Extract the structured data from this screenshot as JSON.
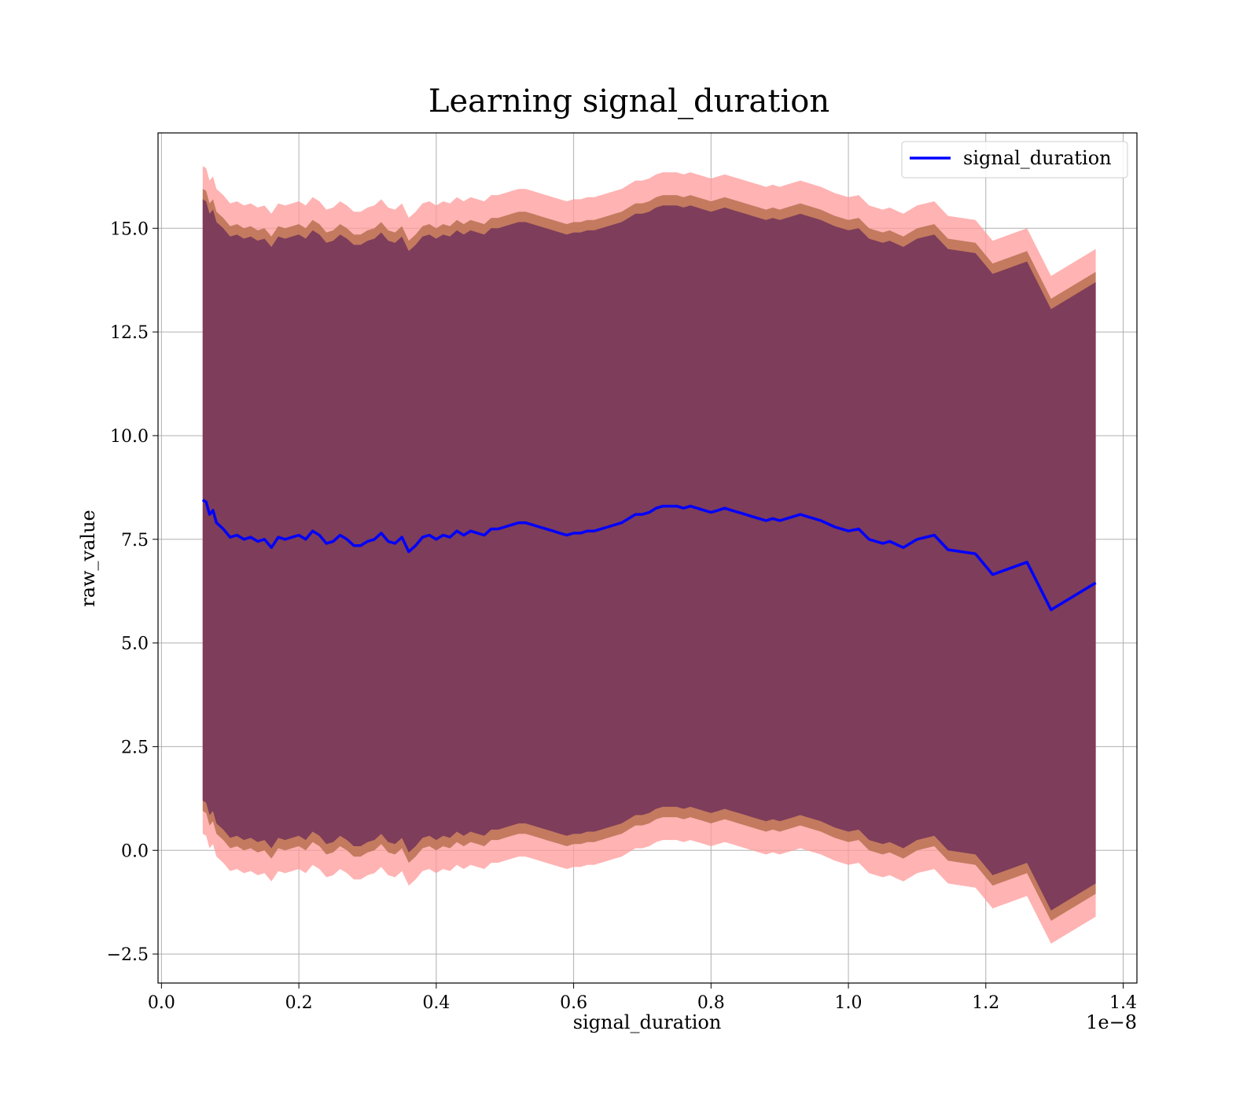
{
  "chart_data": {
    "type": "line",
    "title": "Learning signal_duration",
    "xlabel": "signal_duration",
    "ylabel": "raw_value",
    "x_offset_label": "1e−8",
    "xlim": [
      -0.005,
      1.42
    ],
    "ylim": [
      -3.2,
      17.3
    ],
    "x_ticks": [
      0.0,
      0.2,
      0.4,
      0.6,
      0.8,
      1.0,
      1.2,
      1.4
    ],
    "x_tick_labels": [
      "0.0",
      "0.2",
      "0.4",
      "0.6",
      "0.8",
      "1.0",
      "1.2",
      "1.4"
    ],
    "y_ticks": [
      -2.5,
      0.0,
      2.5,
      5.0,
      7.5,
      10.0,
      12.5,
      15.0
    ],
    "y_tick_labels": [
      "−2.5",
      "0.0",
      "2.5",
      "5.0",
      "7.5",
      "10.0",
      "12.5",
      "15.0"
    ],
    "grid": true,
    "legend": {
      "position": "top-right",
      "entries": [
        "signal_duration"
      ]
    },
    "colors": {
      "line": "#0000ff",
      "band_outer": "#ff9999",
      "band_mid": "#b87050",
      "band_inner": "#7a3a5a"
    },
    "series": [
      {
        "name": "signal_duration",
        "x": [
          0.06,
          0.065,
          0.07,
          0.075,
          0.08,
          0.09,
          0.1,
          0.11,
          0.12,
          0.13,
          0.14,
          0.15,
          0.16,
          0.17,
          0.18,
          0.19,
          0.2,
          0.21,
          0.22,
          0.23,
          0.24,
          0.25,
          0.26,
          0.27,
          0.28,
          0.29,
          0.3,
          0.31,
          0.32,
          0.33,
          0.34,
          0.35,
          0.36,
          0.37,
          0.38,
          0.39,
          0.4,
          0.41,
          0.42,
          0.43,
          0.44,
          0.45,
          0.46,
          0.47,
          0.48,
          0.49,
          0.5,
          0.51,
          0.52,
          0.53,
          0.54,
          0.55,
          0.56,
          0.57,
          0.58,
          0.59,
          0.6,
          0.61,
          0.62,
          0.63,
          0.64,
          0.65,
          0.66,
          0.67,
          0.68,
          0.69,
          0.7,
          0.71,
          0.72,
          0.73,
          0.74,
          0.75,
          0.76,
          0.77,
          0.78,
          0.79,
          0.8,
          0.81,
          0.82,
          0.83,
          0.84,
          0.85,
          0.86,
          0.87,
          0.88,
          0.89,
          0.9,
          0.91,
          0.92,
          0.93,
          0.94,
          0.96,
          0.98,
          1.0,
          1.015,
          1.03,
          1.05,
          1.06,
          1.08,
          1.1,
          1.125,
          1.145,
          1.185,
          1.21,
          1.26,
          1.295,
          1.36
        ],
        "y": [
          8.45,
          8.4,
          8.1,
          8.2,
          7.9,
          7.75,
          7.55,
          7.6,
          7.5,
          7.55,
          7.45,
          7.5,
          7.3,
          7.55,
          7.5,
          7.55,
          7.6,
          7.5,
          7.7,
          7.6,
          7.4,
          7.45,
          7.6,
          7.5,
          7.35,
          7.35,
          7.45,
          7.5,
          7.65,
          7.45,
          7.4,
          7.55,
          7.2,
          7.35,
          7.55,
          7.6,
          7.5,
          7.6,
          7.55,
          7.7,
          7.6,
          7.7,
          7.65,
          7.6,
          7.75,
          7.75,
          7.8,
          7.85,
          7.9,
          7.9,
          7.85,
          7.8,
          7.75,
          7.7,
          7.65,
          7.6,
          7.65,
          7.65,
          7.7,
          7.7,
          7.75,
          7.8,
          7.85,
          7.9,
          8.0,
          8.1,
          8.1,
          8.15,
          8.25,
          8.3,
          8.3,
          8.3,
          8.25,
          8.3,
          8.25,
          8.2,
          8.15,
          8.2,
          8.25,
          8.2,
          8.15,
          8.1,
          8.05,
          8.0,
          7.95,
          8.0,
          7.95,
          8.0,
          8.05,
          8.1,
          8.05,
          7.95,
          7.8,
          7.7,
          7.75,
          7.5,
          7.4,
          7.45,
          7.3,
          7.5,
          7.6,
          7.25,
          7.15,
          6.65,
          6.95,
          5.8,
          6.45
        ]
      }
    ],
    "bands": [
      {
        "name": "outer",
        "half_width": 8.05
      },
      {
        "name": "mid",
        "half_width": 7.5
      },
      {
        "name": "inner",
        "half_width": 7.25
      }
    ]
  }
}
